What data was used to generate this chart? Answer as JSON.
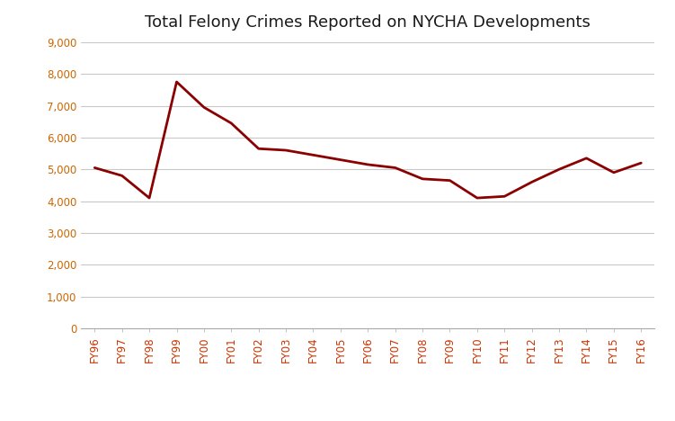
{
  "title": "Total Felony Crimes Reported on NYCHA Developments",
  "categories": [
    "FY96",
    "FY97",
    "FY98",
    "FY99",
    "FY00",
    "FY01",
    "FY02",
    "FY03",
    "FY04",
    "FY05",
    "FY06",
    "FY07",
    "FY08",
    "FY09",
    "FY10",
    "FY11",
    "FY12",
    "FY13",
    "FY14",
    "FY15",
    "FY16"
  ],
  "values": [
    5050,
    4800,
    4100,
    7750,
    6950,
    6450,
    5650,
    5600,
    5450,
    5300,
    5150,
    5050,
    4700,
    4650,
    4100,
    4150,
    4600,
    5000,
    5350,
    4900,
    5200
  ],
  "line_color": "#8B0000",
  "line_width": 2.0,
  "ylim": [
    0,
    9000
  ],
  "yticks": [
    0,
    1000,
    2000,
    3000,
    4000,
    5000,
    6000,
    7000,
    8000,
    9000
  ],
  "background_color": "#ffffff",
  "grid_color": "#c8c8c8",
  "title_fontsize": 13,
  "tick_fontsize": 8.5,
  "ytick_color": "#cc6600",
  "xtick_color": "#cc3300"
}
